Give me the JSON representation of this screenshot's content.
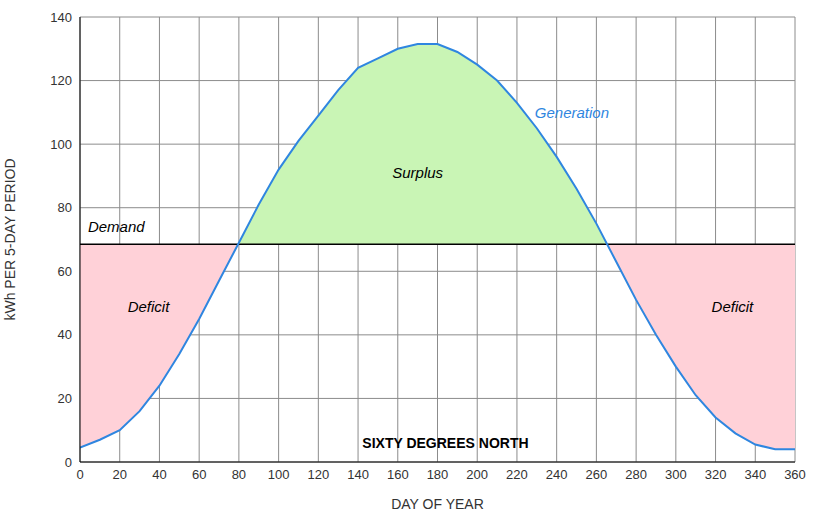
{
  "chart_data": {
    "type": "line",
    "title": "SIXTY DEGREES NORTH",
    "x_label": "DAY OF YEAR",
    "y_label": "kWh PER 5-DAY PERIOD",
    "x": [
      0,
      10,
      20,
      30,
      40,
      50,
      60,
      70,
      80,
      90,
      100,
      110,
      120,
      130,
      140,
      150,
      160,
      170,
      180,
      190,
      200,
      210,
      220,
      230,
      240,
      250,
      260,
      270,
      280,
      290,
      300,
      310,
      320,
      330,
      340,
      350,
      360
    ],
    "series": [
      {
        "name": "Generation",
        "color": "#2f86e0",
        "values": [
          4.5,
          7,
          10,
          16,
          24,
          34,
          45,
          57,
          69,
          81,
          92,
          101,
          109,
          117,
          124,
          127,
          130,
          131.5,
          131.5,
          129,
          125,
          120,
          113,
          105,
          96,
          86,
          75,
          63,
          51,
          40,
          30,
          21,
          14,
          9,
          5.5,
          4,
          4
        ]
      },
      {
        "name": "Demand",
        "color": "#000000",
        "values": [
          68.5,
          68.5,
          68.5,
          68.5,
          68.5,
          68.5,
          68.5,
          68.5,
          68.5,
          68.5,
          68.5,
          68.5,
          68.5,
          68.5,
          68.5,
          68.5,
          68.5,
          68.5,
          68.5,
          68.5,
          68.5,
          68.5,
          68.5,
          68.5,
          68.5,
          68.5,
          68.5,
          68.5,
          68.5,
          68.5,
          68.5,
          68.5,
          68.5,
          68.5,
          68.5,
          68.5,
          68.5
        ]
      }
    ],
    "annotations": [
      "Surplus",
      "Deficit",
      "Deficit"
    ],
    "xlim": [
      0,
      360
    ],
    "xticks": [
      0,
      20,
      40,
      60,
      80,
      100,
      120,
      140,
      160,
      180,
      200,
      220,
      240,
      260,
      280,
      300,
      320,
      340,
      360
    ],
    "ylim": [
      0,
      140
    ],
    "yticks": [
      0,
      20,
      40,
      60,
      80,
      100,
      120,
      140
    ],
    "grid": true
  }
}
